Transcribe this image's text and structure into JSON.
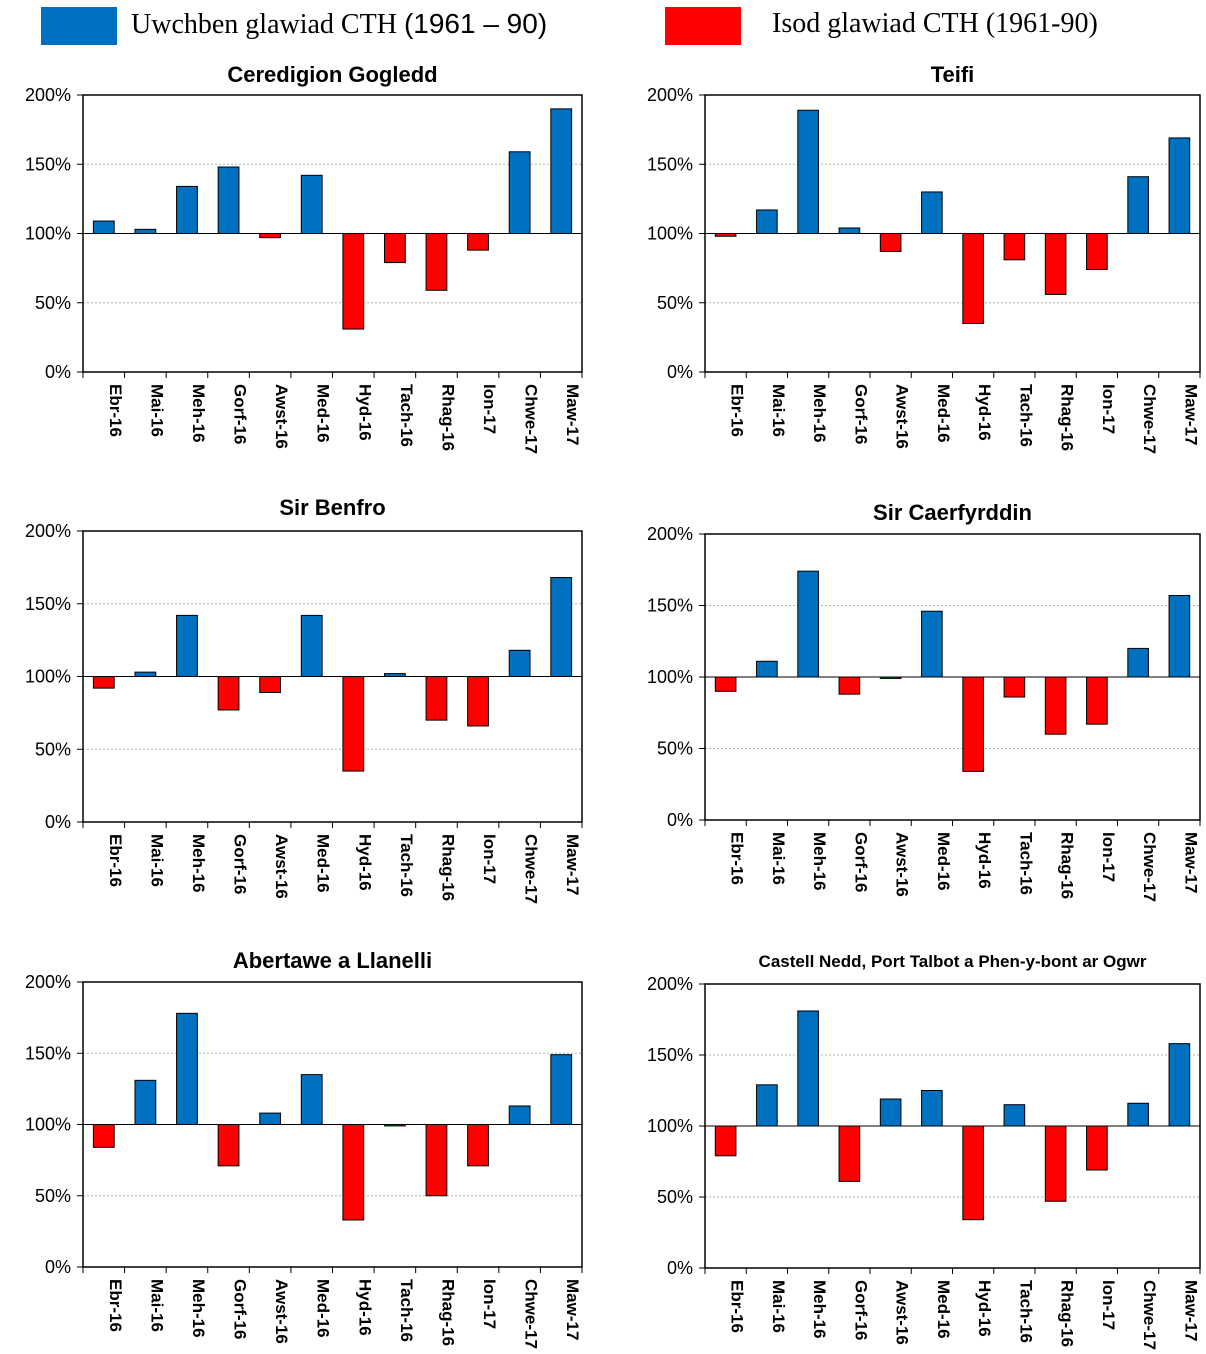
{
  "legend": {
    "above": {
      "prefix": "Uwchben glawiad CTH",
      "period": "(1961 – 90)",
      "color": "#0070C0"
    },
    "below": {
      "label": "Isod glawiad CTH (1961-90)",
      "color": "#FF0000"
    }
  },
  "chart_data": [
    {
      "type": "bar",
      "title": "Ceredigion Gogledd",
      "categories": [
        "Ebr-16",
        "Mai-16",
        "Meh-16",
        "Gorf-16",
        "Awst-16",
        "Med-16",
        "Hyd-16",
        "Tach-16",
        "Rhag-16",
        "Ion-17",
        "Chwe-17",
        "Maw-17"
      ],
      "values": [
        109,
        103,
        134,
        148,
        97,
        142,
        31,
        79,
        59,
        88,
        159,
        190
      ],
      "baseline": 100,
      "ylim": [
        0,
        200
      ],
      "yticks": [
        "0%",
        "50%",
        "100%",
        "150%",
        "200%"
      ],
      "grid": true
    },
    {
      "type": "bar",
      "title": "Teifi",
      "categories": [
        "Ebr-16",
        "Mai-16",
        "Meh-16",
        "Gorf-16",
        "Awst-16",
        "Med-16",
        "Hyd-16",
        "Tach-16",
        "Rhag-16",
        "Ion-17",
        "Chwe-17",
        "Maw-17"
      ],
      "values": [
        98,
        117,
        189,
        104,
        87,
        130,
        35,
        81,
        56,
        74,
        141,
        169
      ],
      "baseline": 100,
      "ylim": [
        0,
        200
      ],
      "yticks": [
        "0%",
        "50%",
        "100%",
        "150%",
        "200%"
      ],
      "grid": true
    },
    {
      "type": "bar",
      "title": "Sir Benfro",
      "categories": [
        "Ebr-16",
        "Mai-16",
        "Meh-16",
        "Gorf-16",
        "Awst-16",
        "Med-16",
        "Hyd-16",
        "Tach-16",
        "Rhag-16",
        "Ion-17",
        "Chwe-17",
        "Maw-17"
      ],
      "values": [
        92,
        103,
        142,
        77,
        89,
        142,
        35,
        102,
        70,
        66,
        118,
        168
      ],
      "baseline": 100,
      "ylim": [
        0,
        200
      ],
      "yticks": [
        "0%",
        "50%",
        "100%",
        "150%",
        "200%"
      ],
      "grid": true
    },
    {
      "type": "bar",
      "title": "Sir Caerfyrddin",
      "categories": [
        "Ebr-16",
        "Mai-16",
        "Meh-16",
        "Gorf-16",
        "Awst-16",
        "Med-16",
        "Hyd-16",
        "Tach-16",
        "Rhag-16",
        "Ion-17",
        "Chwe-17",
        "Maw-17"
      ],
      "values": [
        90,
        111,
        174,
        88,
        99,
        146,
        34,
        86,
        60,
        67,
        120,
        157
      ],
      "baseline": 100,
      "ylim": [
        0,
        200
      ],
      "yticks": [
        "0%",
        "50%",
        "100%",
        "150%",
        "200%"
      ],
      "grid": true
    },
    {
      "type": "bar",
      "title": "Abertawe a Llanelli",
      "categories": [
        "Ebr-16",
        "Mai-16",
        "Meh-16",
        "Gorf-16",
        "Awst-16",
        "Med-16",
        "Hyd-16",
        "Tach-16",
        "Rhag-16",
        "Ion-17",
        "Chwe-17",
        "Maw-17"
      ],
      "values": [
        84,
        131,
        178,
        71,
        108,
        135,
        33,
        99,
        50,
        71,
        113,
        149
      ],
      "baseline": 100,
      "ylim": [
        0,
        200
      ],
      "yticks": [
        "0%",
        "50%",
        "100%",
        "150%",
        "200%"
      ],
      "grid": true
    },
    {
      "type": "bar",
      "title": "Castell Nedd, Port Talbot a Phen-y-bont ar Ogwr",
      "categories": [
        "Ebr-16",
        "Mai-16",
        "Meh-16",
        "Gorf-16",
        "Awst-16",
        "Med-16",
        "Hyd-16",
        "Tach-16",
        "Rhag-16",
        "Ion-17",
        "Chwe-17",
        "Maw-17"
      ],
      "values": [
        79,
        129,
        181,
        61,
        119,
        125,
        34,
        115,
        47,
        69,
        116,
        158
      ],
      "baseline": 100,
      "ylim": [
        0,
        200
      ],
      "yticks": [
        "0%",
        "50%",
        "100%",
        "150%",
        "200%"
      ],
      "grid": true
    }
  ]
}
